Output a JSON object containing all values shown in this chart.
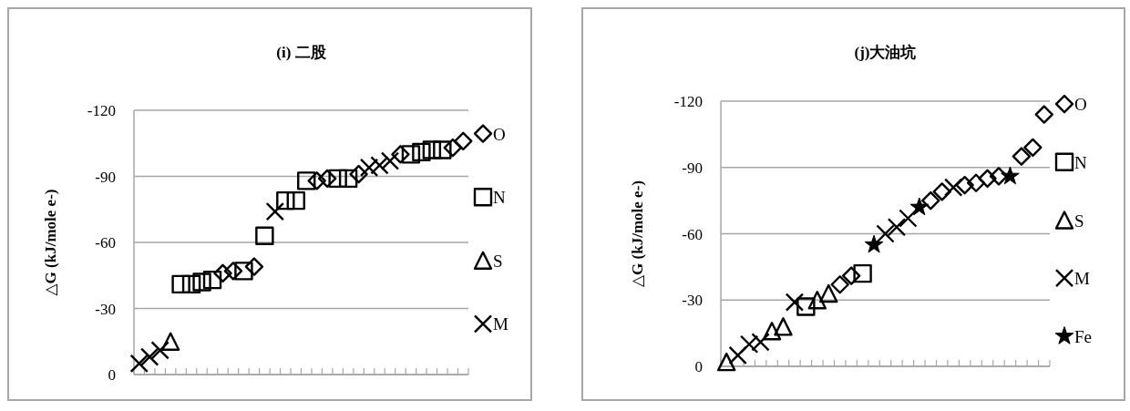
{
  "chart_data": [
    {
      "type": "scatter",
      "title": "(i) 二股",
      "ylabel": "△G (kJ/mole e-)",
      "ylim": [
        0,
        -120
      ],
      "yticks": [
        0,
        -30,
        -60,
        -90,
        -120
      ],
      "grid": "y",
      "legend": "right",
      "categories": [
        null,
        null,
        null,
        null,
        null,
        null,
        null,
        null,
        null,
        null,
        null,
        null,
        null,
        null,
        null,
        null,
        null,
        null,
        null,
        null,
        null,
        null,
        null,
        null,
        null,
        null,
        null,
        null,
        null,
        null,
        null,
        null
      ],
      "series": [
        {
          "name": "O",
          "color": "#000000",
          "marker": "diamond",
          "values": [
            null,
            null,
            null,
            null,
            null,
            null,
            null,
            null,
            -46,
            -47,
            null,
            -49,
            null,
            null,
            null,
            null,
            null,
            -88,
            -89,
            null,
            null,
            -91,
            null,
            null,
            null,
            -100,
            null,
            null,
            null,
            null,
            -103,
            -106
          ]
        },
        {
          "name": "N",
          "color": "#000000",
          "marker": "square",
          "values": [
            null,
            null,
            null,
            null,
            -41,
            -41,
            -42,
            -43,
            null,
            null,
            -47,
            null,
            -63,
            null,
            -79,
            -79,
            -88,
            null,
            null,
            -89,
            -89,
            null,
            null,
            null,
            null,
            null,
            -100,
            -101,
            -102,
            -102,
            null,
            null
          ]
        },
        {
          "name": "S",
          "color": "#000000",
          "marker": "triangle",
          "values": [
            null,
            null,
            null,
            -15,
            null,
            null,
            null,
            null,
            null,
            null,
            null,
            null,
            null,
            null,
            null,
            null,
            null,
            null,
            null,
            null,
            null,
            null,
            null,
            null,
            null,
            null,
            null,
            null,
            null,
            null,
            null,
            null
          ]
        },
        {
          "name": "M",
          "color": "#000000",
          "marker": "cross",
          "values": [
            -5,
            -8,
            -11,
            null,
            null,
            null,
            null,
            null,
            null,
            null,
            null,
            null,
            null,
            -74,
            null,
            null,
            null,
            null,
            null,
            null,
            null,
            null,
            -94,
            -95,
            -97,
            null,
            null,
            null,
            null,
            null,
            null,
            null
          ]
        }
      ]
    },
    {
      "type": "scatter",
      "title": "(j)大油坑",
      "ylabel": "△G (kJ/mole e-)",
      "ylim": [
        0,
        -120
      ],
      "yticks": [
        0,
        -30,
        -60,
        -90,
        -120
      ],
      "grid": "y",
      "legend": "right",
      "categories": [
        null,
        null,
        null,
        null,
        null,
        null,
        null,
        null,
        null,
        null,
        null,
        null,
        null,
        null,
        null,
        null,
        null,
        null,
        null,
        null,
        null,
        null,
        null,
        null,
        null,
        null,
        null,
        null,
        null
      ],
      "series": [
        {
          "name": "O",
          "color": "#000000",
          "marker": "diamond",
          "values": [
            null,
            null,
            null,
            null,
            null,
            null,
            null,
            null,
            null,
            null,
            -37,
            -41,
            null,
            null,
            null,
            null,
            null,
            null,
            -75,
            -79,
            null,
            -82,
            -83,
            -85,
            -86,
            null,
            -95,
            -99,
            -114
          ]
        },
        {
          "name": "N",
          "color": "#000000",
          "marker": "square",
          "values": [
            null,
            null,
            null,
            null,
            null,
            null,
            null,
            -27,
            null,
            null,
            null,
            null,
            -42,
            null,
            null,
            null,
            null,
            null,
            null,
            null,
            null,
            null,
            null,
            null,
            null,
            null,
            null,
            null,
            null
          ]
        },
        {
          "name": "S",
          "color": "#000000",
          "marker": "triangle",
          "values": [
            -2,
            null,
            null,
            null,
            -16,
            -18,
            null,
            null,
            -30,
            -33,
            null,
            null,
            null,
            null,
            null,
            null,
            null,
            null,
            null,
            null,
            null,
            null,
            null,
            null,
            null,
            null,
            null,
            null,
            null
          ]
        },
        {
          "name": "M",
          "color": "#000000",
          "marker": "cross",
          "values": [
            null,
            -5,
            -10,
            -11,
            null,
            null,
            -29,
            null,
            null,
            null,
            null,
            null,
            null,
            null,
            -60,
            -63,
            -67,
            null,
            null,
            null,
            -81,
            null,
            null,
            null,
            null,
            null,
            null,
            null,
            null
          ]
        },
        {
          "name": "Fe",
          "color": "#000000",
          "marker": "star",
          "values": [
            null,
            null,
            null,
            null,
            null,
            null,
            null,
            null,
            null,
            null,
            null,
            null,
            null,
            -55,
            null,
            null,
            null,
            -72,
            null,
            null,
            null,
            null,
            null,
            null,
            null,
            -86,
            null,
            null,
            null
          ]
        }
      ]
    }
  ]
}
